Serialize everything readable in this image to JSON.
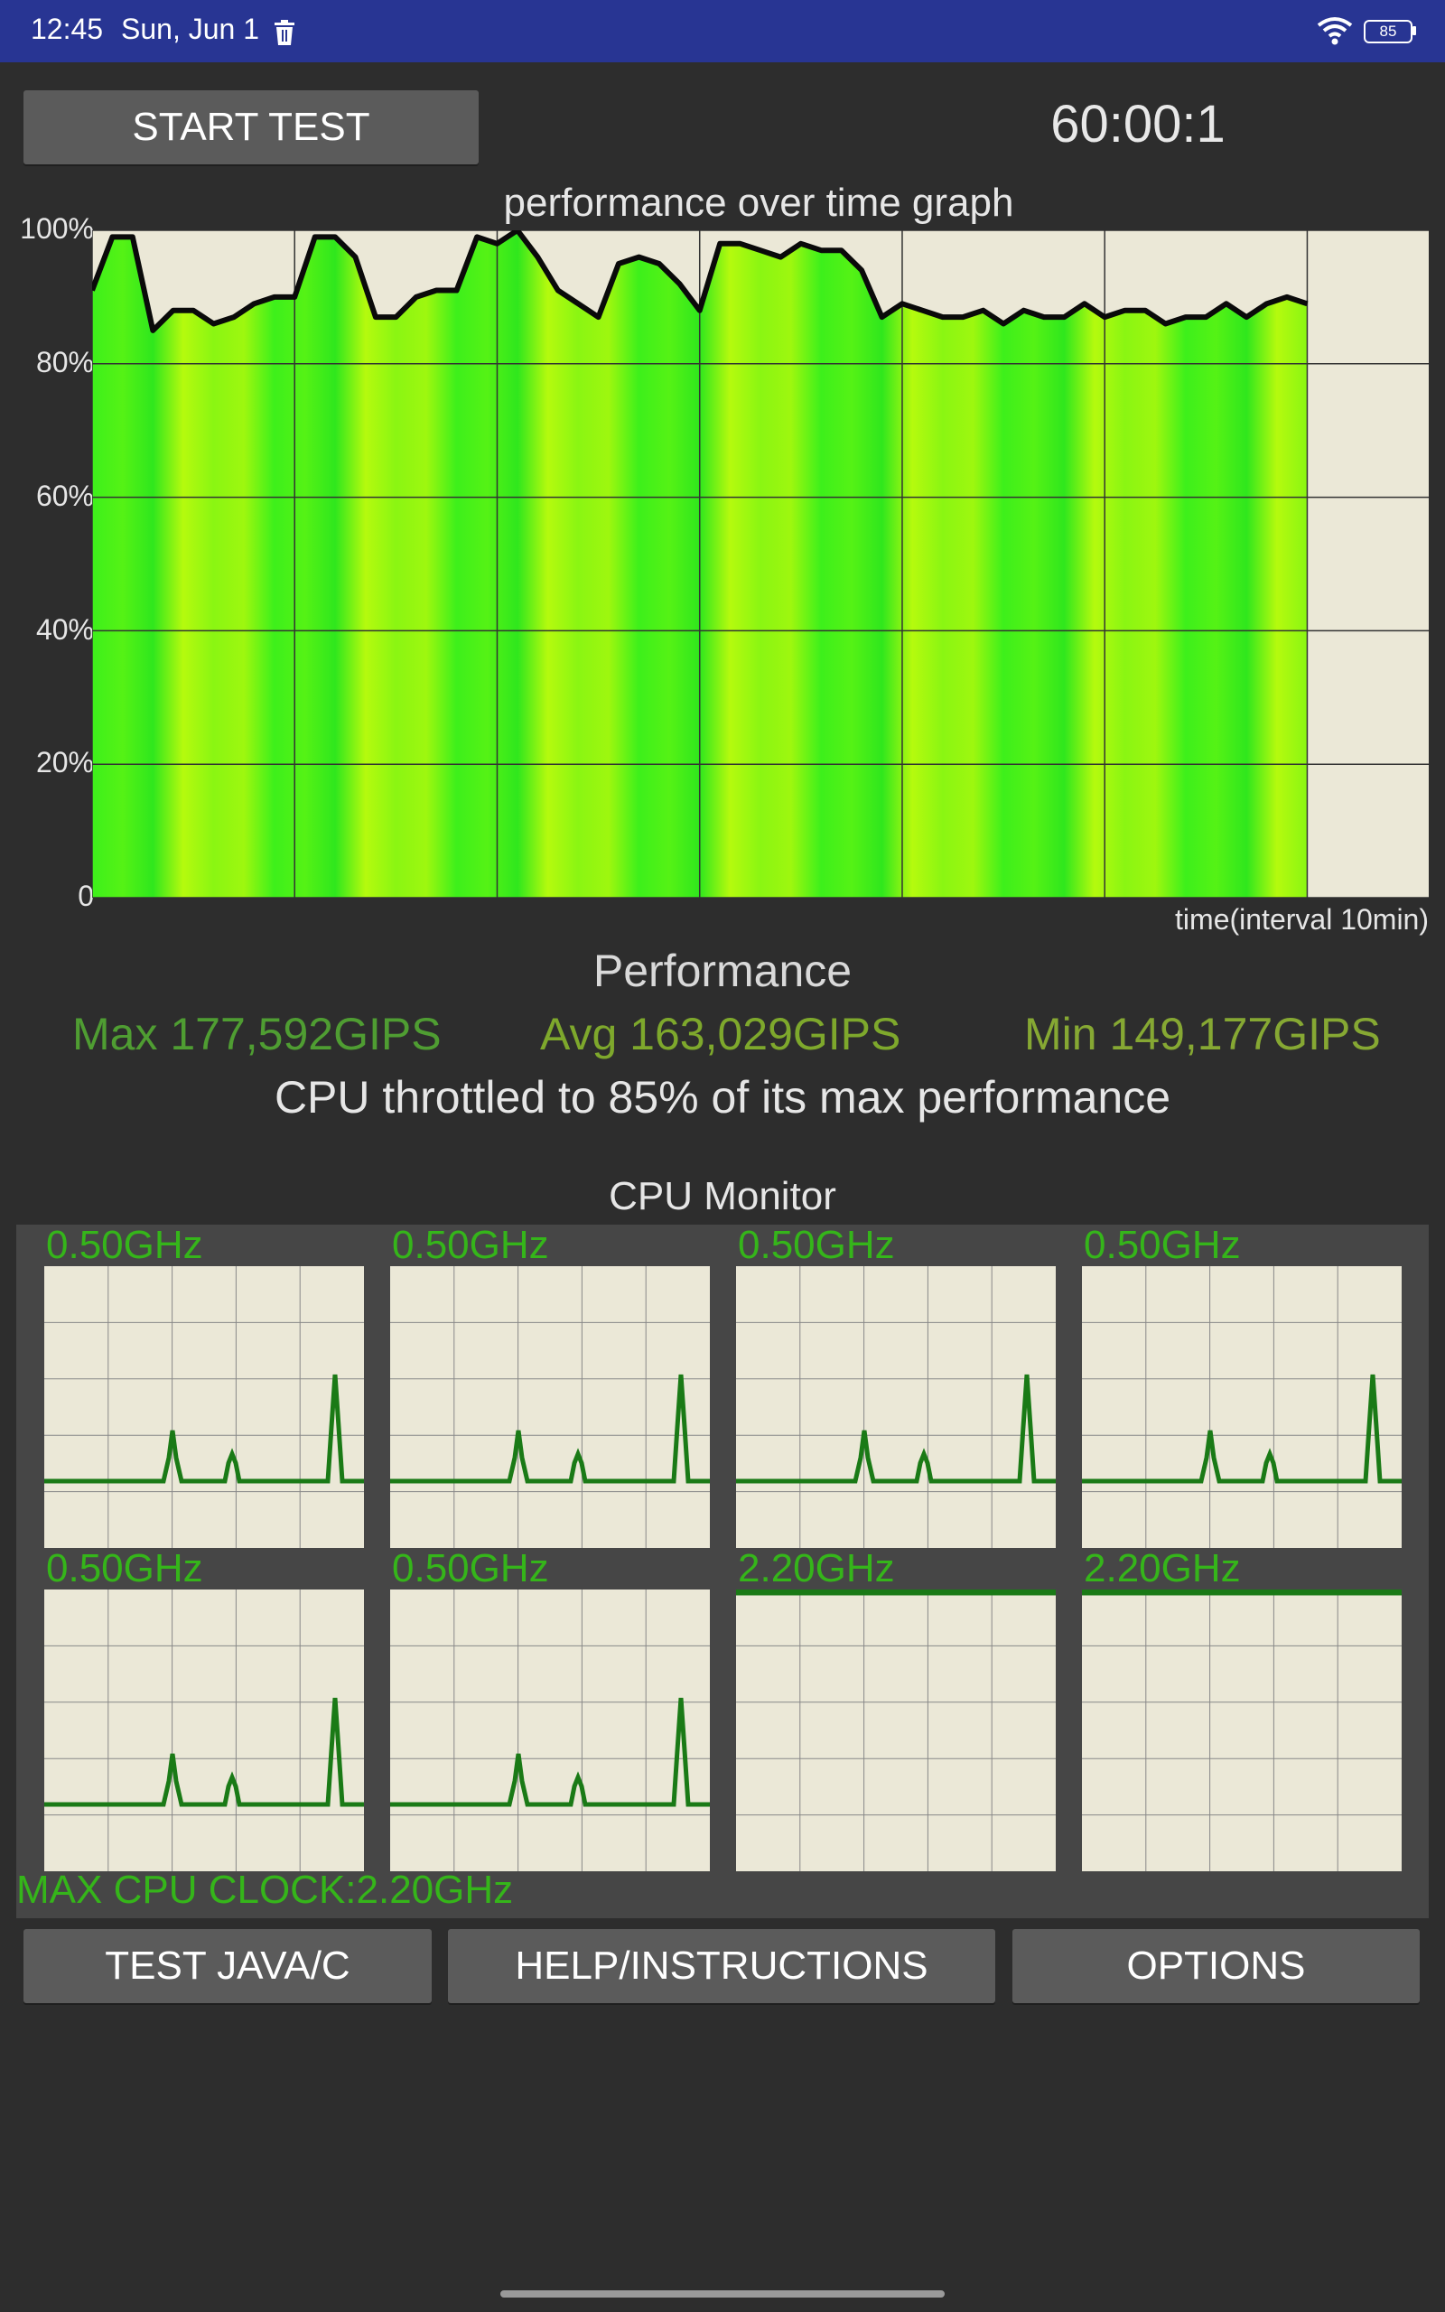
{
  "status_bar": {
    "time": "12:45",
    "date": "Sun, Jun 1",
    "battery_level": "85",
    "icons": [
      "trash-icon",
      "wifi-icon",
      "battery-icon"
    ]
  },
  "controls": {
    "start_label": "START TEST",
    "timer": "60:00:1"
  },
  "graph": {
    "title": "performance over time graph",
    "y_ticks": [
      "100%",
      "80%",
      "60%",
      "40%",
      "20%",
      "0"
    ],
    "x_label": "time(interval 10min)"
  },
  "performance": {
    "heading": "Performance",
    "max": "Max 177,592GIPS",
    "avg": "Avg 163,029GIPS",
    "min": "Min 149,177GIPS",
    "throttle": "CPU throttled to 85% of its max performance"
  },
  "cpu_monitor": {
    "title": "CPU Monitor",
    "cores": [
      {
        "freq": "0.50GHz",
        "pattern": "low"
      },
      {
        "freq": "0.50GHz",
        "pattern": "low"
      },
      {
        "freq": "0.50GHz",
        "pattern": "low"
      },
      {
        "freq": "0.50GHz",
        "pattern": "low"
      },
      {
        "freq": "0.50GHz",
        "pattern": "low"
      },
      {
        "freq": "0.50GHz",
        "pattern": "low"
      },
      {
        "freq": "2.20GHz",
        "pattern": "max"
      },
      {
        "freq": "2.20GHz",
        "pattern": "max"
      }
    ],
    "max_clock": "MAX CPU CLOCK:2.20GHz"
  },
  "bottom_buttons": {
    "java": "TEST JAVA/C",
    "help": "HELP/INSTRUCTIONS",
    "options": "OPTIONS"
  },
  "chart_data": {
    "type": "area",
    "title": "performance over time graph",
    "xlabel": "time(interval 10min)",
    "ylabel": "",
    "ylim": [
      0,
      100
    ],
    "x_range_minutes": [
      0,
      66
    ],
    "x": [
      0,
      1,
      2,
      3,
      4,
      5,
      6,
      7,
      8,
      9,
      10,
      11,
      12,
      13,
      14,
      15,
      16,
      17,
      18,
      19,
      20,
      21,
      22,
      23,
      24,
      25,
      26,
      27,
      28,
      29,
      30,
      31,
      32,
      33,
      34,
      35,
      36,
      37,
      38,
      39,
      40,
      41,
      42,
      43,
      44,
      45,
      46,
      47,
      48,
      49,
      50,
      51,
      52,
      53,
      54,
      55,
      56,
      57,
      58,
      59,
      60
    ],
    "series": [
      {
        "values": [
          91,
          99,
          99,
          85,
          88,
          88,
          86,
          87,
          89,
          90,
          90,
          99,
          99,
          96,
          87,
          87,
          90,
          91,
          91,
          99,
          98,
          100,
          96,
          91,
          89,
          87,
          95,
          96,
          95,
          92,
          88,
          98,
          98,
          97,
          96,
          98,
          97,
          97,
          94,
          87,
          89,
          88,
          87,
          87,
          88,
          86,
          88,
          87,
          87,
          89,
          87,
          88,
          88,
          86,
          87,
          87,
          89,
          87,
          89,
          90,
          89
        ]
      }
    ]
  }
}
